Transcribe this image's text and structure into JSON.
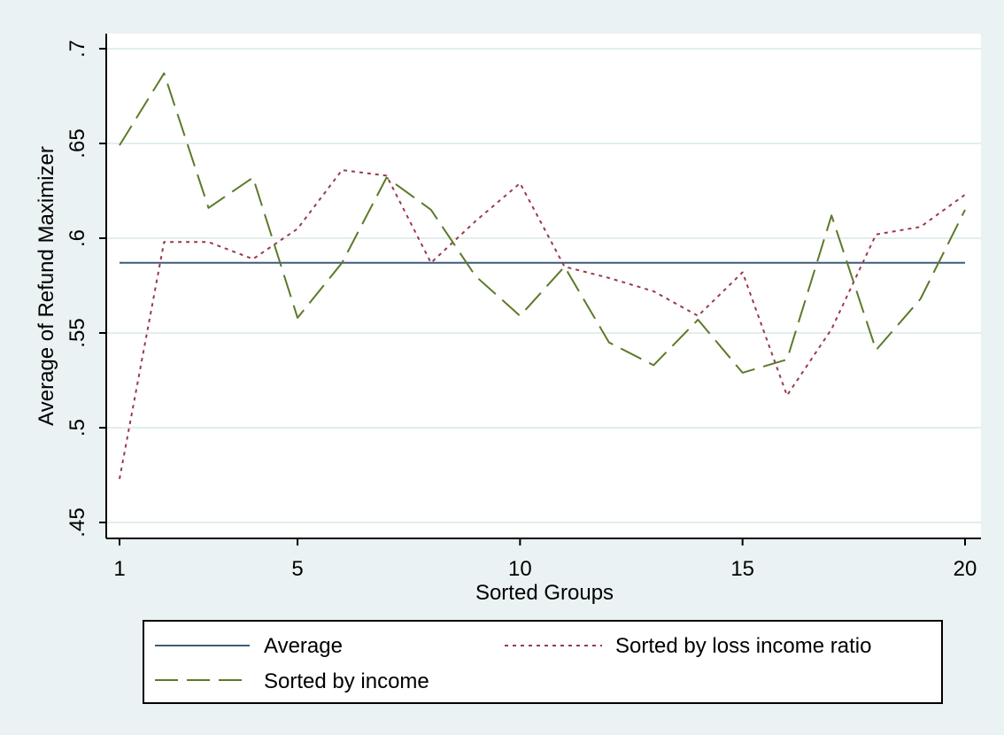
{
  "chart_data": {
    "type": "line",
    "title": "",
    "xlabel": "Sorted Groups",
    "ylabel": "Average of Refund Maximizer",
    "xlim": [
      1,
      20
    ],
    "ylim": [
      0.45,
      0.7
    ],
    "x_ticks": [
      1,
      5,
      10,
      15,
      20
    ],
    "x_tick_labels": [
      "1",
      "5",
      "10",
      "15",
      "20"
    ],
    "y_ticks": [
      0.45,
      0.5,
      0.55,
      0.6,
      0.65,
      0.7
    ],
    "y_tick_labels": [
      ".45",
      ".5",
      ".55",
      ".6",
      ".65",
      ".7"
    ],
    "grid": true,
    "legend_position": "bottom",
    "x": [
      1,
      2,
      3,
      4,
      5,
      6,
      7,
      8,
      9,
      10,
      11,
      12,
      13,
      14,
      15,
      16,
      17,
      18,
      19,
      20
    ],
    "series": [
      {
        "name": "Average",
        "style": "solid",
        "color": "#3e5c7c",
        "values": [
          0.587,
          0.587,
          0.587,
          0.587,
          0.587,
          0.587,
          0.587,
          0.587,
          0.587,
          0.587,
          0.587,
          0.587,
          0.587,
          0.587,
          0.587,
          0.587,
          0.587,
          0.587,
          0.587,
          0.587
        ]
      },
      {
        "name": "Sorted by loss income ratio",
        "style": "dotted",
        "color": "#9b3a4a",
        "values": [
          0.473,
          0.598,
          0.598,
          0.589,
          0.605,
          0.636,
          0.633,
          0.587,
          0.609,
          0.629,
          0.585,
          0.579,
          0.572,
          0.559,
          0.582,
          0.517,
          0.552,
          0.602,
          0.606,
          0.623
        ]
      },
      {
        "name": "Sorted by income",
        "style": "dashed",
        "color": "#5b7a2a",
        "values": [
          0.649,
          0.687,
          0.616,
          0.632,
          0.558,
          0.587,
          0.632,
          0.615,
          0.58,
          0.559,
          0.585,
          0.545,
          0.533,
          0.557,
          0.529,
          0.536,
          0.612,
          0.541,
          0.568,
          0.615
        ]
      }
    ]
  }
}
